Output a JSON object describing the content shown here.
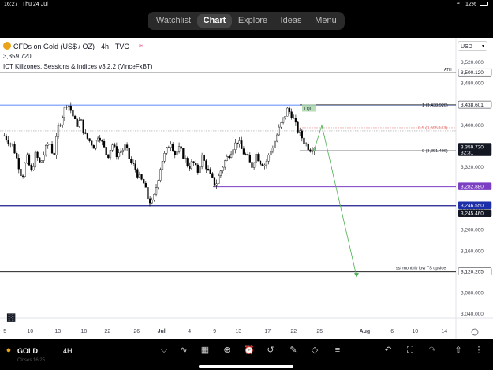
{
  "status_bar": {
    "time": "16:27",
    "date": "Thu 24 Jul",
    "battery": "12%"
  },
  "nav": {
    "tabs": [
      "Watchlist",
      "Chart",
      "Explore",
      "Ideas",
      "Menu"
    ],
    "active": "Chart"
  },
  "header": {
    "symbol_title": "CFDs on Gold (US$ / OZ) · 4h · TVC",
    "price": "3,359.720",
    "indicator": "ICT Killzones, Sessions & Indices v3.2.2 (VinceFxBT)",
    "currency": "USD"
  },
  "price_axis": {
    "ticks": [
      "3,520.000",
      "3,480.000",
      "3,440.000",
      "3,400.000",
      "3,360.000",
      "3,320.000",
      "3,280.000",
      "3,240.000",
      "3,200.000",
      "3,160.000",
      "3,120.000",
      "3,080.000",
      "3,040.000"
    ],
    "labels": [
      {
        "text": "3,500.120",
        "style": "white"
      },
      {
        "text": "3,438.601",
        "style": "white"
      },
      {
        "text": "3,359.720",
        "style": "dark"
      },
      {
        "text": "32:31",
        "style": "dark"
      },
      {
        "text": "3,282.880",
        "style": "purple"
      },
      {
        "text": "3,246.550",
        "style": "blue"
      },
      {
        "text": "3,245.460",
        "style": "dark"
      },
      {
        "text": "3,120.205",
        "style": "white"
      }
    ]
  },
  "time_axis": {
    "ticks": [
      "5",
      "10",
      "13",
      "18",
      "22",
      "26",
      "Jul",
      "4",
      "9",
      "13",
      "17",
      "22",
      "25",
      "Aug",
      "6",
      "10",
      "14"
    ]
  },
  "annotations": {
    "ath": "ATH",
    "fib_1": "1 (3,438.920)",
    "fib_05": "0.5 (3,395.163)",
    "fib_0": "0 (3,351.406)",
    "ssl": "ssl monthly low TS upside",
    "box_label": "LQL"
  },
  "colors": {
    "blue_line": "#2962ff",
    "purple_line": "#7b3fc4",
    "green_arrow": "#4caf50",
    "candle_up": "#ffffff",
    "candle_down": "#000000"
  },
  "bottom_bar": {
    "symbol": "GOLD",
    "interval": "4H",
    "sub": "Closes 16:25"
  },
  "chart_data": {
    "type": "candlestick",
    "title": "CFDs on Gold (US$ / OZ) · 4h · TVC",
    "ylim": [
      3020,
      3540
    ],
    "x_ticks": [
      "5",
      "10",
      "13",
      "18",
      "22",
      "26",
      "Jul",
      "4",
      "9",
      "13",
      "17",
      "22",
      "25",
      "Aug",
      "6",
      "10",
      "14"
    ],
    "levels": [
      3500.12,
      3438.601,
      3359.72,
      3282.88,
      3246.55,
      3245.46,
      3120.205
    ],
    "fib": {
      "1": 3438.92,
      "0.5": 3395.163,
      "0": 3351.406
    },
    "path": [
      3380,
      3370,
      3360,
      3330,
      3300,
      3340,
      3310,
      3345,
      3325,
      3350,
      3370,
      3340,
      3395,
      3420,
      3445,
      3425,
      3400,
      3410,
      3380,
      3370,
      3360,
      3385,
      3360,
      3340,
      3365,
      3345,
      3350,
      3360,
      3330,
      3320,
      3300,
      3290,
      3260,
      3250,
      3290,
      3330,
      3350,
      3370,
      3345,
      3355,
      3340,
      3320,
      3330,
      3310,
      3340,
      3320,
      3300,
      3285,
      3310,
      3330,
      3345,
      3360,
      3370,
      3350,
      3340,
      3320,
      3345,
      3330,
      3325,
      3345,
      3365,
      3390,
      3410,
      3430,
      3420,
      3395,
      3380,
      3365,
      3355,
      3360
    ]
  }
}
